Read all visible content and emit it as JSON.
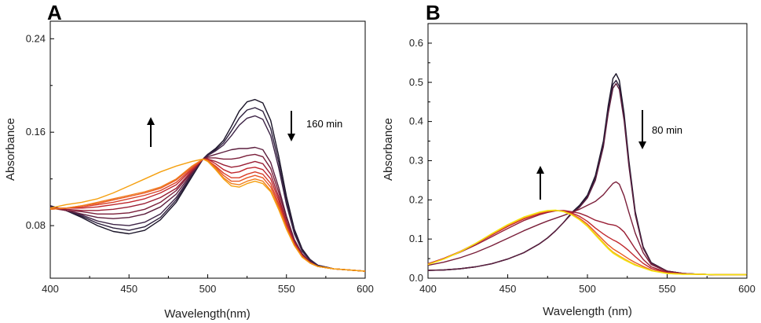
{
  "chart_data": [
    {
      "panel": "A",
      "type": "line",
      "xlabel": "Wavelength(nm)",
      "ylabel": "Absorbance",
      "xlim": [
        400,
        600
      ],
      "ylim": [
        0.035,
        0.255
      ],
      "xticks": [
        400,
        450,
        500,
        550,
        600
      ],
      "yticks": [
        0.08,
        0.16,
        0.24
      ],
      "tick_labels_y": [
        "0.08",
        "0.16",
        "0.24"
      ],
      "tick_labels_x": [
        "400",
        "450",
        "500",
        "550",
        "600"
      ],
      "annotations": [
        {
          "text": "160 min"
        }
      ],
      "arrows": [
        {
          "direction": "up"
        },
        {
          "direction": "down"
        }
      ],
      "x": [
        400,
        410,
        420,
        430,
        440,
        450,
        460,
        470,
        480,
        490,
        497,
        500,
        505,
        510,
        515,
        520,
        525,
        530,
        535,
        540,
        545,
        550,
        555,
        560,
        565,
        570,
        580,
        590,
        600
      ],
      "series": [
        {
          "color": "#1a1428",
          "values": [
            0.097,
            0.093,
            0.087,
            0.08,
            0.075,
            0.073,
            0.076,
            0.085,
            0.1,
            0.122,
            0.137,
            0.141,
            0.146,
            0.153,
            0.165,
            0.178,
            0.186,
            0.188,
            0.185,
            0.17,
            0.14,
            0.105,
            0.077,
            0.06,
            0.051,
            0.046,
            0.043,
            0.042,
            0.041
          ]
        },
        {
          "color": "#2d1f3d",
          "values": [
            0.097,
            0.093,
            0.088,
            0.082,
            0.078,
            0.076,
            0.079,
            0.087,
            0.102,
            0.123,
            0.137,
            0.141,
            0.145,
            0.151,
            0.161,
            0.172,
            0.179,
            0.181,
            0.178,
            0.163,
            0.135,
            0.101,
            0.075,
            0.059,
            0.051,
            0.046,
            0.043,
            0.042,
            0.041
          ]
        },
        {
          "color": "#3d2446",
          "values": [
            0.096,
            0.093,
            0.089,
            0.084,
            0.081,
            0.08,
            0.083,
            0.09,
            0.104,
            0.124,
            0.137,
            0.14,
            0.144,
            0.149,
            0.157,
            0.166,
            0.172,
            0.174,
            0.171,
            0.157,
            0.13,
            0.098,
            0.073,
            0.058,
            0.05,
            0.046,
            0.043,
            0.042,
            0.041
          ]
        },
        {
          "color": "#5c1f3e",
          "values": [
            0.096,
            0.093,
            0.09,
            0.087,
            0.086,
            0.087,
            0.09,
            0.096,
            0.107,
            0.125,
            0.137,
            0.139,
            0.141,
            0.143,
            0.145,
            0.146,
            0.146,
            0.147,
            0.145,
            0.134,
            0.113,
            0.088,
            0.068,
            0.056,
            0.049,
            0.045,
            0.043,
            0.042,
            0.041
          ]
        },
        {
          "color": "#7a1f3a",
          "values": [
            0.095,
            0.093,
            0.092,
            0.09,
            0.09,
            0.091,
            0.094,
            0.1,
            0.11,
            0.126,
            0.137,
            0.138,
            0.138,
            0.137,
            0.137,
            0.138,
            0.14,
            0.141,
            0.139,
            0.129,
            0.109,
            0.086,
            0.067,
            0.055,
            0.049,
            0.045,
            0.043,
            0.042,
            0.041
          ]
        },
        {
          "color": "#9a1f35",
          "values": [
            0.095,
            0.094,
            0.093,
            0.093,
            0.094,
            0.096,
            0.099,
            0.104,
            0.112,
            0.127,
            0.137,
            0.137,
            0.135,
            0.132,
            0.13,
            0.131,
            0.133,
            0.135,
            0.133,
            0.124,
            0.105,
            0.083,
            0.066,
            0.055,
            0.049,
            0.045,
            0.043,
            0.042,
            0.041
          ]
        },
        {
          "color": "#c0282e",
          "values": [
            0.095,
            0.095,
            0.095,
            0.096,
            0.098,
            0.1,
            0.103,
            0.108,
            0.115,
            0.128,
            0.137,
            0.137,
            0.133,
            0.128,
            0.125,
            0.126,
            0.129,
            0.13,
            0.128,
            0.12,
            0.102,
            0.081,
            0.065,
            0.054,
            0.048,
            0.045,
            0.043,
            0.042,
            0.041
          ]
        },
        {
          "color": "#d9402a",
          "values": [
            0.094,
            0.095,
            0.096,
            0.098,
            0.1,
            0.103,
            0.106,
            0.11,
            0.117,
            0.129,
            0.137,
            0.136,
            0.131,
            0.125,
            0.121,
            0.121,
            0.124,
            0.126,
            0.124,
            0.116,
            0.099,
            0.08,
            0.064,
            0.054,
            0.048,
            0.045,
            0.043,
            0.042,
            0.041
          ]
        },
        {
          "color": "#e85a25",
          "values": [
            0.094,
            0.095,
            0.097,
            0.099,
            0.102,
            0.105,
            0.108,
            0.112,
            0.119,
            0.13,
            0.137,
            0.136,
            0.13,
            0.123,
            0.118,
            0.118,
            0.121,
            0.123,
            0.121,
            0.113,
            0.097,
            0.078,
            0.063,
            0.053,
            0.048,
            0.045,
            0.043,
            0.042,
            0.041
          ]
        },
        {
          "color": "#f07e1e",
          "values": [
            0.094,
            0.095,
            0.097,
            0.1,
            0.103,
            0.106,
            0.109,
            0.113,
            0.12,
            0.131,
            0.137,
            0.135,
            0.129,
            0.121,
            0.116,
            0.115,
            0.118,
            0.12,
            0.118,
            0.11,
            0.095,
            0.077,
            0.063,
            0.053,
            0.048,
            0.045,
            0.043,
            0.042,
            0.041
          ]
        },
        {
          "color": "#f5a00f",
          "values": [
            0.095,
            0.098,
            0.1,
            0.103,
            0.108,
            0.114,
            0.12,
            0.126,
            0.131,
            0.135,
            0.137,
            0.135,
            0.128,
            0.12,
            0.114,
            0.113,
            0.116,
            0.118,
            0.116,
            0.109,
            0.094,
            0.077,
            0.063,
            0.053,
            0.048,
            0.045,
            0.043,
            0.042,
            0.041
          ]
        }
      ]
    },
    {
      "panel": "B",
      "type": "line",
      "xlabel": "Wavelength (nm)",
      "ylabel": "Absorbance",
      "xlim": [
        400,
        600
      ],
      "ylim": [
        0,
        0.65
      ],
      "xticks": [
        400,
        450,
        500,
        550,
        600
      ],
      "yticks": [
        0.0,
        0.1,
        0.2,
        0.3,
        0.4,
        0.5,
        0.6
      ],
      "tick_labels_y": [
        "0.0",
        "0.1",
        "0.2",
        "0.3",
        "0.4",
        "0.5",
        "0.6"
      ],
      "tick_labels_x": [
        "400",
        "450",
        "500",
        "550",
        "600"
      ],
      "annotations": [
        {
          "text": "80 min"
        }
      ],
      "arrows": [
        {
          "direction": "up"
        },
        {
          "direction": "down"
        }
      ],
      "x": [
        400,
        410,
        420,
        430,
        440,
        450,
        460,
        470,
        475,
        480,
        485,
        490,
        495,
        500,
        505,
        510,
        513,
        516,
        518,
        520,
        523,
        526,
        530,
        535,
        540,
        550,
        560,
        570,
        580,
        590,
        600
      ],
      "series": [
        {
          "color": "#1a1428",
          "values": [
            0.02,
            0.021,
            0.024,
            0.029,
            0.037,
            0.049,
            0.065,
            0.088,
            0.103,
            0.121,
            0.142,
            0.167,
            0.186,
            0.212,
            0.262,
            0.35,
            0.44,
            0.51,
            0.522,
            0.505,
            0.42,
            0.3,
            0.17,
            0.08,
            0.04,
            0.018,
            0.012,
            0.01,
            0.009,
            0.009,
            0.009
          ]
        },
        {
          "color": "#2d1f3d",
          "values": [
            0.02,
            0.021,
            0.024,
            0.029,
            0.037,
            0.049,
            0.065,
            0.088,
            0.103,
            0.121,
            0.142,
            0.165,
            0.183,
            0.208,
            0.255,
            0.342,
            0.43,
            0.495,
            0.505,
            0.49,
            0.41,
            0.292,
            0.165,
            0.078,
            0.039,
            0.018,
            0.012,
            0.01,
            0.009,
            0.009,
            0.009
          ]
        },
        {
          "color": "#5c1f3e",
          "values": [
            0.02,
            0.021,
            0.024,
            0.029,
            0.037,
            0.049,
            0.065,
            0.088,
            0.103,
            0.121,
            0.142,
            0.164,
            0.181,
            0.205,
            0.25,
            0.335,
            0.42,
            0.485,
            0.497,
            0.482,
            0.402,
            0.286,
            0.162,
            0.076,
            0.038,
            0.018,
            0.012,
            0.01,
            0.009,
            0.009,
            0.009
          ]
        },
        {
          "color": "#7a1f3a",
          "values": [
            0.033,
            0.041,
            0.052,
            0.066,
            0.083,
            0.102,
            0.121,
            0.138,
            0.146,
            0.153,
            0.16,
            0.168,
            0.176,
            0.186,
            0.196,
            0.213,
            0.228,
            0.242,
            0.246,
            0.24,
            0.21,
            0.168,
            0.115,
            0.065,
            0.035,
            0.017,
            0.012,
            0.01,
            0.009,
            0.009,
            0.009
          ]
        },
        {
          "color": "#9a1f35",
          "values": [
            0.037,
            0.05,
            0.066,
            0.085,
            0.106,
            0.127,
            0.147,
            0.162,
            0.168,
            0.172,
            0.173,
            0.17,
            0.166,
            0.158,
            0.148,
            0.142,
            0.138,
            0.136,
            0.134,
            0.129,
            0.118,
            0.1,
            0.075,
            0.048,
            0.029,
            0.015,
            0.011,
            0.01,
            0.009,
            0.009,
            0.009
          ]
        },
        {
          "color": "#c0282e",
          "values": [
            0.037,
            0.051,
            0.068,
            0.088,
            0.11,
            0.132,
            0.151,
            0.165,
            0.17,
            0.173,
            0.172,
            0.167,
            0.158,
            0.145,
            0.128,
            0.113,
            0.105,
            0.098,
            0.094,
            0.089,
            0.08,
            0.07,
            0.055,
            0.038,
            0.025,
            0.014,
            0.011,
            0.01,
            0.009,
            0.009,
            0.009
          ]
        },
        {
          "color": "#e85a25",
          "values": [
            0.036,
            0.05,
            0.068,
            0.089,
            0.112,
            0.134,
            0.153,
            0.167,
            0.171,
            0.173,
            0.171,
            0.164,
            0.153,
            0.138,
            0.118,
            0.097,
            0.085,
            0.075,
            0.07,
            0.065,
            0.057,
            0.049,
            0.04,
            0.03,
            0.021,
            0.013,
            0.011,
            0.01,
            0.009,
            0.009,
            0.009
          ]
        },
        {
          "color": "#f5b21a",
          "values": [
            0.035,
            0.049,
            0.067,
            0.089,
            0.113,
            0.136,
            0.155,
            0.168,
            0.172,
            0.173,
            0.17,
            0.162,
            0.15,
            0.134,
            0.113,
            0.091,
            0.078,
            0.067,
            0.062,
            0.057,
            0.05,
            0.043,
            0.035,
            0.027,
            0.02,
            0.012,
            0.01,
            0.01,
            0.009,
            0.009,
            0.009
          ]
        },
        {
          "color": "#f3e410",
          "values": [
            0.035,
            0.049,
            0.067,
            0.089,
            0.114,
            0.137,
            0.156,
            0.169,
            0.173,
            0.174,
            0.17,
            0.162,
            0.149,
            0.132,
            0.11,
            0.088,
            0.075,
            0.064,
            0.059,
            0.054,
            0.047,
            0.041,
            0.033,
            0.026,
            0.019,
            0.012,
            0.01,
            0.01,
            0.009,
            0.009,
            0.009
          ]
        }
      ]
    }
  ]
}
